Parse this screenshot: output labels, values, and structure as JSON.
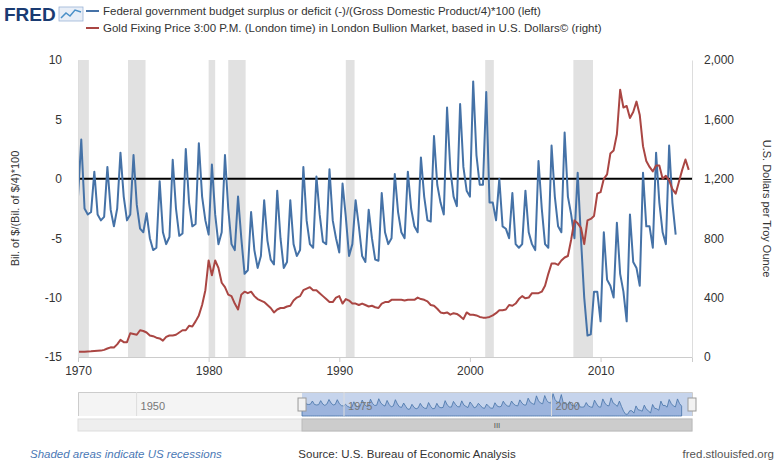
{
  "chart_data": {
    "type": "line",
    "logo": "FRED",
    "legend": "top",
    "grid": false,
    "xlim": [
      1970,
      2017
    ],
    "xticks": [
      1970,
      1980,
      1990,
      2000,
      2010
    ],
    "ylim": [
      -15,
      10
    ],
    "yticks": [
      -15,
      -10,
      -5,
      0,
      5,
      10
    ],
    "y2lim": [
      0,
      2000
    ],
    "y2ticks": [
      0,
      400,
      800,
      {
        "value": 1200,
        "label": "1,200"
      },
      {
        "value": 1600,
        "label": "1,600"
      },
      {
        "value": 2000,
        "label": "2,000"
      }
    ],
    "ylabel": "Bil. of $/(Bil. of $/4)*100",
    "y2label": "U.S. Dollars per Troy Ounce",
    "hline": 0,
    "recessions": [
      [
        1969.92,
        1970.83
      ],
      [
        1973.83,
        1975.17
      ],
      [
        1980.0,
        1980.5
      ],
      [
        1981.5,
        1982.83
      ],
      [
        1990.5,
        1991.17
      ],
      [
        2001.17,
        2001.83
      ],
      [
        2007.92,
        2009.42
      ]
    ],
    "recession_note": "Shaded areas indicate US recessions",
    "source": "Source: U.S. Bureau of Economic Analysis",
    "credit": "fred.stlouisfed.org",
    "navigator": {
      "xlim": [
        1943,
        2017
      ],
      "xticks": [
        1950,
        1975,
        2000
      ],
      "window": [
        1970,
        2017
      ],
      "scrollbar_label": "III"
    },
    "series": [
      {
        "name": "Federal government budget surplus or deficit (-)/(Gross Domestic Product/4)*100 (left)",
        "color": "#4572a7",
        "axis": "y",
        "x": [
          1970,
          1970.25,
          1970.5,
          1970.75,
          1971,
          1971.25,
          1971.5,
          1971.75,
          1972,
          1972.25,
          1972.5,
          1972.75,
          1973,
          1973.25,
          1973.5,
          1973.75,
          1974,
          1974.25,
          1974.5,
          1974.75,
          1975,
          1975.25,
          1975.5,
          1975.75,
          1976,
          1976.25,
          1976.5,
          1976.75,
          1977,
          1977.25,
          1977.5,
          1977.75,
          1978,
          1978.25,
          1978.5,
          1978.75,
          1979,
          1979.25,
          1979.5,
          1979.75,
          1980,
          1980.25,
          1980.5,
          1980.75,
          1981,
          1981.25,
          1981.5,
          1981.75,
          1982,
          1982.25,
          1982.5,
          1982.75,
          1983,
          1983.25,
          1983.5,
          1983.75,
          1984,
          1984.25,
          1984.5,
          1984.75,
          1985,
          1985.25,
          1985.5,
          1985.75,
          1986,
          1986.25,
          1986.5,
          1986.75,
          1987,
          1987.25,
          1987.5,
          1987.75,
          1988,
          1988.25,
          1988.5,
          1988.75,
          1989,
          1989.25,
          1989.5,
          1989.75,
          1990,
          1990.25,
          1990.5,
          1990.75,
          1991,
          1991.25,
          1991.5,
          1991.75,
          1992,
          1992.25,
          1992.5,
          1992.75,
          1993,
          1993.25,
          1993.5,
          1993.75,
          1994,
          1994.25,
          1994.5,
          1994.75,
          1995,
          1995.25,
          1995.5,
          1995.75,
          1996,
          1996.25,
          1996.5,
          1996.75,
          1997,
          1997.25,
          1997.5,
          1997.75,
          1998,
          1998.25,
          1998.5,
          1998.75,
          1999,
          1999.25,
          1999.5,
          1999.75,
          2000,
          2000.25,
          2000.5,
          2000.75,
          2001,
          2001.25,
          2001.5,
          2001.75,
          2002,
          2002.25,
          2002.5,
          2002.75,
          2003,
          2003.25,
          2003.5,
          2003.75,
          2004,
          2004.25,
          2004.5,
          2004.75,
          2005,
          2005.25,
          2005.5,
          2005.75,
          2006,
          2006.25,
          2006.5,
          2006.75,
          2007,
          2007.25,
          2007.5,
          2007.75,
          2008,
          2008.25,
          2008.5,
          2008.75,
          2009,
          2009.25,
          2009.5,
          2009.75,
          2010,
          2010.25,
          2010.5,
          2010.75,
          2011,
          2011.25,
          2011.5,
          2011.75,
          2012,
          2012.25,
          2012.5,
          2012.75,
          2013,
          2013.25,
          2013.5,
          2013.75,
          2014,
          2014.25,
          2014.5,
          2014.75,
          2015,
          2015.25,
          2015.5,
          2015.75
        ],
        "values": [
          -1.5,
          3.3,
          -2.5,
          -3.0,
          -2.8,
          0.6,
          -3.0,
          -3.5,
          -3.2,
          1.0,
          -2.6,
          -4.0,
          -2.5,
          2.2,
          -1.5,
          -3.5,
          -3.0,
          2.0,
          -2.2,
          -4.2,
          -4.5,
          -2.9,
          -5.0,
          -6.0,
          -5.8,
          -0.2,
          -4.5,
          -5.5,
          -4.9,
          1.6,
          -2.5,
          -4.8,
          -4.6,
          2.5,
          -2.0,
          -4.0,
          -3.8,
          3.0,
          -1.5,
          -3.5,
          -4.7,
          1.2,
          -3.0,
          -5.5,
          -4.5,
          2.0,
          -2.5,
          -5.5,
          -6.0,
          -1.5,
          -5.0,
          -8.0,
          -7.7,
          -2.8,
          -6.0,
          -7.5,
          -6.5,
          -1.8,
          -5.2,
          -6.8,
          -7.2,
          -1.0,
          -5.0,
          -7.5,
          -7.0,
          -1.8,
          -5.5,
          -6.5,
          -6.0,
          1.0,
          -3.5,
          -5.5,
          -5.8,
          0.2,
          -3.0,
          -5.3,
          -5.5,
          0.8,
          -3.5,
          -5.0,
          -6.2,
          -0.4,
          -3.2,
          -6.5,
          -5.5,
          -1.8,
          -4.0,
          -6.5,
          -7.0,
          -2.6,
          -5.0,
          -6.8,
          -6.9,
          -1.2,
          -4.5,
          -5.5,
          -5.0,
          0.4,
          -2.8,
          -4.5,
          -5.0,
          0.6,
          -2.5,
          -4.0,
          -4.5,
          1.8,
          -1.5,
          -3.5,
          -3.6,
          3.6,
          -0.5,
          -2.0,
          -3.0,
          6.0,
          0.8,
          -1.5,
          -2.3,
          6.3,
          1.0,
          -1.0,
          -1.5,
          8.2,
          2.0,
          -0.5,
          -0.5,
          7.3,
          -2.0,
          -2.0,
          -3.5,
          0.0,
          -4.0,
          -4.2,
          -5.0,
          -1.2,
          -5.5,
          -5.8,
          -5.5,
          -1.0,
          -4.5,
          -5.5,
          -6.0,
          1.5,
          -2.5,
          -5.5,
          -5.8,
          2.8,
          -1.5,
          -4.0,
          -4.5,
          3.9,
          -1.5,
          -3.0,
          -5.0,
          0.5,
          -5.0,
          -10.0,
          -13.2,
          -13.1,
          -9.5,
          -9.5,
          -12.0,
          -4.5,
          -8.5,
          -9.0,
          -10.0,
          -3.7,
          -8.0,
          -9.5,
          -12.0,
          -3.0,
          -7.0,
          -7.5,
          -9.0,
          0.5,
          -4.0,
          -4.0,
          -5.8,
          2.2,
          -2.0,
          -4.5,
          -5.5,
          2.8,
          -2.0,
          -4.7
        ]
      },
      {
        "name": "Gold Fixing Price 3:00 P.M. (London time) in London Bullion Market, based in U.S. Dollars© (right)",
        "color": "#aa4643",
        "axis": "y2",
        "x": [
          1970,
          1970.25,
          1970.5,
          1970.75,
          1971,
          1971.25,
          1971.5,
          1971.75,
          1972,
          1972.25,
          1972.5,
          1972.75,
          1973,
          1973.25,
          1973.5,
          1973.75,
          1974,
          1974.25,
          1974.5,
          1974.75,
          1975,
          1975.25,
          1975.5,
          1975.75,
          1976,
          1976.25,
          1976.5,
          1976.75,
          1977,
          1977.25,
          1977.5,
          1977.75,
          1978,
          1978.25,
          1978.5,
          1978.75,
          1979,
          1979.25,
          1979.5,
          1979.75,
          1980,
          1980.25,
          1980.5,
          1980.75,
          1981,
          1981.25,
          1981.5,
          1981.75,
          1982,
          1982.25,
          1982.5,
          1982.75,
          1983,
          1983.25,
          1983.5,
          1983.75,
          1984,
          1984.25,
          1984.5,
          1984.75,
          1985,
          1985.25,
          1985.5,
          1985.75,
          1986,
          1986.25,
          1986.5,
          1986.75,
          1987,
          1987.25,
          1987.5,
          1987.75,
          1988,
          1988.25,
          1988.5,
          1988.75,
          1989,
          1989.25,
          1989.5,
          1989.75,
          1990,
          1990.25,
          1990.5,
          1990.75,
          1991,
          1991.25,
          1991.5,
          1991.75,
          1992,
          1992.25,
          1992.5,
          1992.75,
          1993,
          1993.25,
          1993.5,
          1993.75,
          1994,
          1994.25,
          1994.5,
          1994.75,
          1995,
          1995.25,
          1995.5,
          1995.75,
          1996,
          1996.25,
          1996.5,
          1996.75,
          1997,
          1997.25,
          1997.5,
          1997.75,
          1998,
          1998.25,
          1998.5,
          1998.75,
          1999,
          1999.25,
          1999.5,
          1999.75,
          2000,
          2000.25,
          2000.5,
          2000.75,
          2001,
          2001.25,
          2001.5,
          2001.75,
          2002,
          2002.25,
          2002.5,
          2002.75,
          2003,
          2003.25,
          2003.5,
          2003.75,
          2004,
          2004.25,
          2004.5,
          2004.75,
          2005,
          2005.25,
          2005.5,
          2005.75,
          2006,
          2006.25,
          2006.5,
          2006.75,
          2007,
          2007.25,
          2007.5,
          2007.75,
          2008,
          2008.25,
          2008.5,
          2008.75,
          2009,
          2009.25,
          2009.5,
          2009.75,
          2010,
          2010.25,
          2010.5,
          2010.75,
          2011,
          2011.25,
          2011.5,
          2011.75,
          2012,
          2012.25,
          2012.5,
          2012.75,
          2013,
          2013.25,
          2013.5,
          2013.75,
          2014,
          2014.25,
          2014.5,
          2014.75,
          2015,
          2015.25,
          2015.5,
          2015.75,
          2016,
          2016.25,
          2016.5,
          2016.75
        ],
        "values": [
          35,
          35.5,
          35.5,
          37,
          38,
          40,
          42,
          43,
          48,
          57,
          65,
          64,
          85,
          115,
          100,
          100,
          160,
          155,
          150,
          180,
          175,
          165,
          145,
          140,
          130,
          125,
          110,
          135,
          145,
          145,
          150,
          165,
          180,
          180,
          210,
          205,
          240,
          280,
          350,
          450,
          650,
          550,
          650,
          600,
          500,
          470,
          420,
          410,
          360,
          320,
          420,
          440,
          430,
          440,
          410,
          390,
          380,
          370,
          350,
          330,
          300,
          320,
          330,
          330,
          340,
          345,
          380,
          400,
          410,
          450,
          460,
          470,
          450,
          450,
          430,
          410,
          390,
          370,
          370,
          400,
          410,
          360,
          390,
          380,
          360,
          360,
          350,
          360,
          350,
          340,
          345,
          335,
          330,
          360,
          370,
          370,
          385,
          385,
          385,
          385,
          380,
          385,
          385,
          385,
          400,
          390,
          385,
          375,
          350,
          345,
          325,
          300,
          295,
          300,
          285,
          295,
          290,
          275,
          255,
          300,
          285,
          285,
          280,
          270,
          265,
          265,
          270,
          280,
          295,
          315,
          315,
          320,
          350,
          345,
          360,
          390,
          410,
          395,
          400,
          430,
          430,
          430,
          440,
          480,
          560,
          630,
          630,
          620,
          650,
          670,
          680,
          790,
          920,
          900,
          870,
          760,
          920,
          930,
          950,
          1100,
          1110,
          1200,
          1230,
          1370,
          1390,
          1500,
          1800,
          1680,
          1690,
          1610,
          1650,
          1720,
          1630,
          1420,
          1320,
          1280,
          1250,
          1290,
          1290,
          1200,
          1220,
          1190,
          1130,
          1100,
          1180,
          1260,
          1330,
          1260
        ]
      }
    ]
  }
}
